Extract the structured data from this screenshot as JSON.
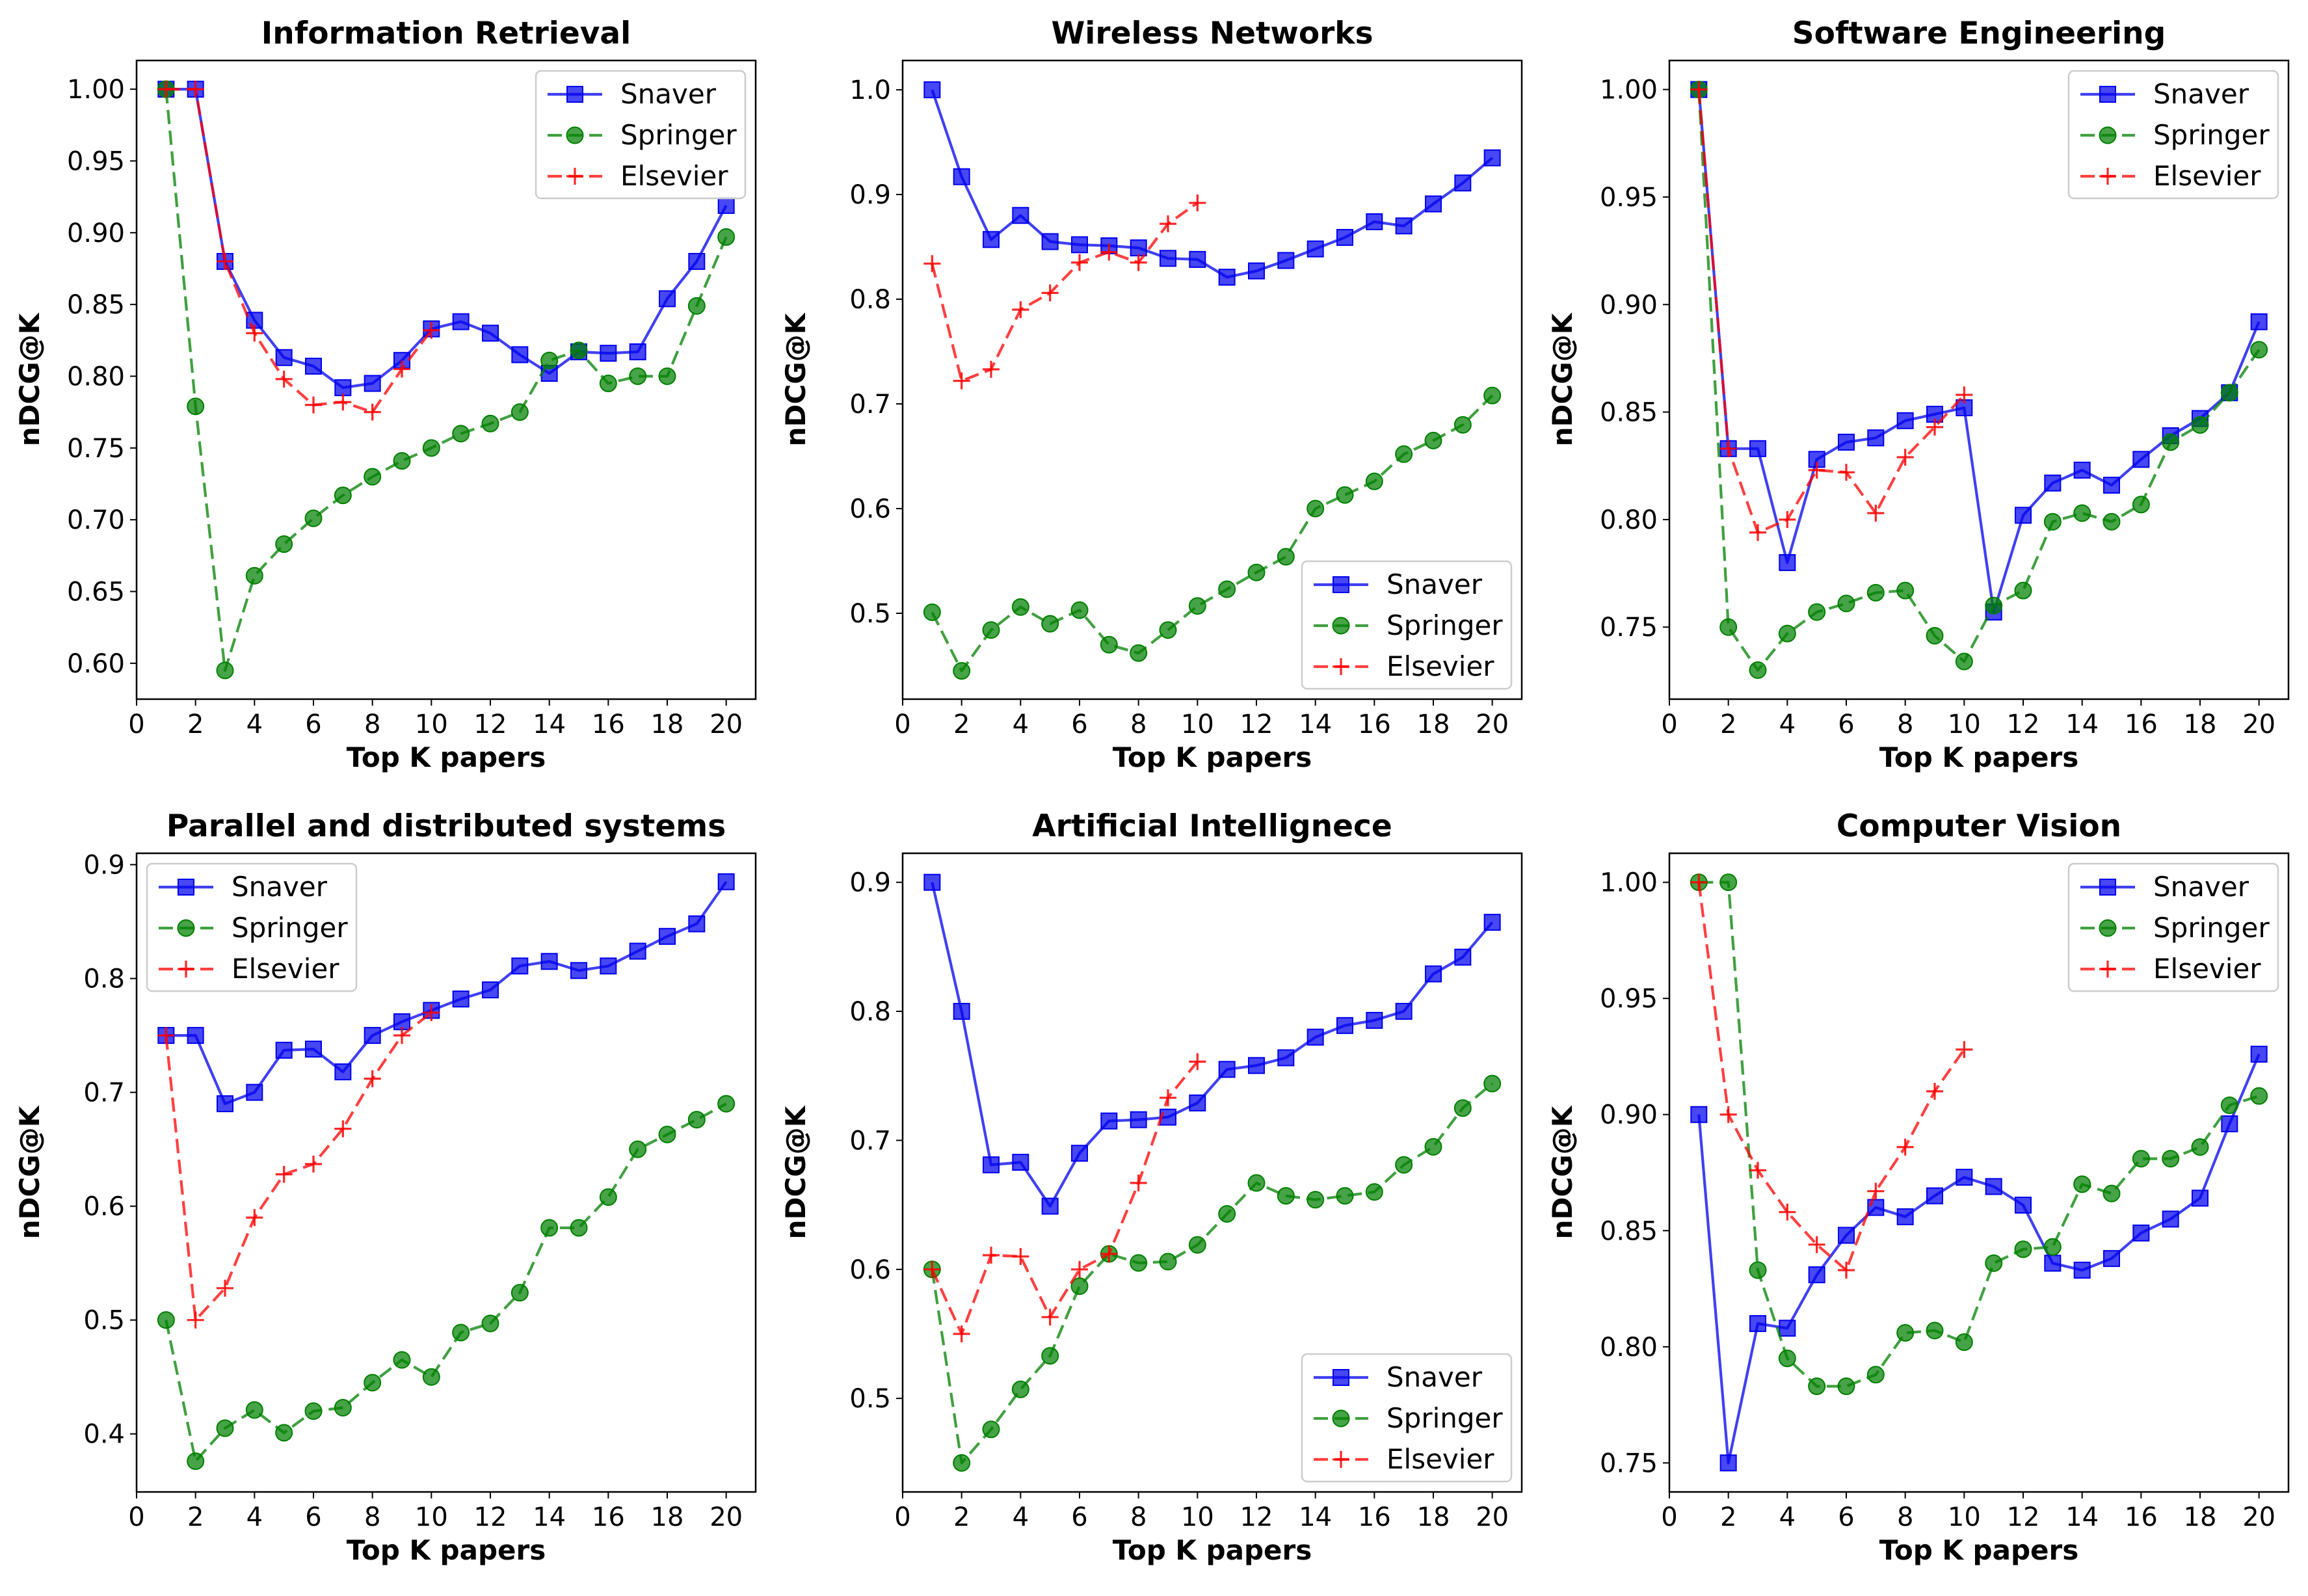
{
  "colors": {
    "Snaver": "#0000ee",
    "Springer": "#008000",
    "Elsevier": "#ff0000"
  },
  "chart_data": [
    {
      "type": "line",
      "title": "Information Retrieval",
      "xlabel": "Top K papers",
      "ylabel": "nDCG@K",
      "xlim": [
        0,
        21
      ],
      "ylim": [
        0.575,
        1.02
      ],
      "xticks": [
        0,
        2,
        4,
        6,
        8,
        10,
        12,
        14,
        16,
        18,
        20
      ],
      "yticks": [
        "0.60",
        "0.65",
        "0.70",
        "0.75",
        "0.80",
        "0.85",
        "0.90",
        "0.95",
        "1.00"
      ],
      "legend": "top-right",
      "series": [
        {
          "name": "Snaver",
          "marker": "square",
          "style": "solid",
          "x": [
            1,
            2,
            3,
            4,
            5,
            6,
            7,
            8,
            9,
            10,
            11,
            12,
            13,
            14,
            15,
            16,
            17,
            18,
            19,
            20
          ],
          "y": [
            1.0,
            1.0,
            0.88,
            0.839,
            0.813,
            0.807,
            0.792,
            0.795,
            0.811,
            0.833,
            0.838,
            0.83,
            0.815,
            0.802,
            0.817,
            0.816,
            0.817,
            0.854,
            0.88,
            0.919
          ]
        },
        {
          "name": "Springer",
          "marker": "circle",
          "style": "dashed",
          "x": [
            1,
            2,
            3,
            4,
            5,
            6,
            7,
            8,
            9,
            10,
            11,
            12,
            13,
            14,
            15,
            16,
            17,
            18,
            19,
            20
          ],
          "y": [
            1.0,
            0.779,
            0.595,
            0.661,
            0.683,
            0.701,
            0.717,
            0.73,
            0.741,
            0.75,
            0.76,
            0.767,
            0.775,
            0.811,
            0.818,
            0.795,
            0.8,
            0.8,
            0.849,
            0.897
          ]
        },
        {
          "name": "Elsevier",
          "marker": "plus",
          "style": "dashed",
          "x": [
            1,
            2,
            3,
            4,
            5,
            6,
            7,
            8,
            9,
            10
          ],
          "y": [
            1.0,
            1.0,
            0.88,
            0.83,
            0.798,
            0.78,
            0.782,
            0.775,
            0.805,
            0.832
          ]
        }
      ]
    },
    {
      "type": "line",
      "title": "Wireless Networks",
      "xlabel": "Top K papers",
      "ylabel": "nDCG@K",
      "xlim": [
        0,
        21
      ],
      "ylim": [
        0.418,
        1.028
      ],
      "xticks": [
        0,
        2,
        4,
        6,
        8,
        10,
        12,
        14,
        16,
        18,
        20
      ],
      "yticks": [
        "0.5",
        "0.6",
        "0.7",
        "0.8",
        "0.9",
        "1.0"
      ],
      "legend": "lower-right",
      "series": [
        {
          "name": "Snaver",
          "marker": "square",
          "style": "solid",
          "x": [
            1,
            2,
            3,
            4,
            5,
            6,
            7,
            8,
            9,
            10,
            11,
            12,
            13,
            14,
            15,
            16,
            17,
            18,
            19,
            20
          ],
          "y": [
            1.0,
            0.917,
            0.857,
            0.88,
            0.855,
            0.852,
            0.851,
            0.849,
            0.839,
            0.838,
            0.821,
            0.827,
            0.837,
            0.848,
            0.859,
            0.874,
            0.87,
            0.891,
            0.911,
            0.935
          ]
        },
        {
          "name": "Springer",
          "marker": "circle",
          "style": "dashed",
          "x": [
            1,
            2,
            3,
            4,
            5,
            6,
            7,
            8,
            9,
            10,
            11,
            12,
            13,
            14,
            15,
            16,
            17,
            18,
            19,
            20
          ],
          "y": [
            0.501,
            0.445,
            0.484,
            0.506,
            0.49,
            0.503,
            0.47,
            0.462,
            0.484,
            0.507,
            0.523,
            0.539,
            0.554,
            0.6,
            0.613,
            0.626,
            0.652,
            0.665,
            0.68,
            0.708
          ]
        },
        {
          "name": "Elsevier",
          "marker": "plus",
          "style": "dashed",
          "x": [
            1,
            2,
            3,
            4,
            5,
            6,
            7,
            8,
            9,
            10
          ],
          "y": [
            0.834,
            0.722,
            0.733,
            0.79,
            0.806,
            0.835,
            0.845,
            0.835,
            0.872,
            0.892
          ]
        }
      ]
    },
    {
      "type": "line",
      "title": "Software Engineering",
      "xlabel": "Top K papers",
      "ylabel": "nDCG@K",
      "xlim": [
        0,
        21
      ],
      "ylim": [
        0.7165,
        1.0135
      ],
      "xticks": [
        0,
        2,
        4,
        6,
        8,
        10,
        12,
        14,
        16,
        18,
        20
      ],
      "yticks": [
        "0.75",
        "0.80",
        "0.85",
        "0.90",
        "0.95",
        "1.00"
      ],
      "legend": "top-right",
      "series": [
        {
          "name": "Snaver",
          "marker": "square",
          "style": "solid",
          "x": [
            1,
            2,
            3,
            4,
            5,
            6,
            7,
            8,
            9,
            10,
            11,
            12,
            13,
            14,
            15,
            16,
            17,
            18,
            19,
            20
          ],
          "y": [
            1.0,
            0.833,
            0.833,
            0.78,
            0.828,
            0.836,
            0.838,
            0.846,
            0.849,
            0.852,
            0.757,
            0.802,
            0.817,
            0.823,
            0.816,
            0.828,
            0.839,
            0.847,
            0.859,
            0.892
          ]
        },
        {
          "name": "Springer",
          "marker": "circle",
          "style": "dashed",
          "x": [
            1,
            2,
            3,
            4,
            5,
            6,
            7,
            8,
            9,
            10,
            11,
            12,
            13,
            14,
            15,
            16,
            17,
            18,
            19,
            20
          ],
          "y": [
            1.0,
            0.75,
            0.73,
            0.747,
            0.757,
            0.761,
            0.766,
            0.767,
            0.746,
            0.734,
            0.76,
            0.767,
            0.799,
            0.803,
            0.799,
            0.807,
            0.836,
            0.844,
            0.859,
            0.879
          ]
        },
        {
          "name": "Elsevier",
          "marker": "plus",
          "style": "dashed",
          "x": [
            1,
            2,
            3,
            4,
            5,
            6,
            7,
            8,
            9,
            10
          ],
          "y": [
            1.0,
            0.833,
            0.794,
            0.8,
            0.823,
            0.822,
            0.803,
            0.829,
            0.843,
            0.858
          ]
        }
      ]
    },
    {
      "type": "line",
      "title": "Parallel and distributed systems",
      "xlabel": "Top K papers",
      "ylabel": "nDCG@K",
      "xlim": [
        0,
        21
      ],
      "ylim": [
        0.349,
        0.91
      ],
      "xticks": [
        0,
        2,
        4,
        6,
        8,
        10,
        12,
        14,
        16,
        18,
        20
      ],
      "yticks": [
        "0.4",
        "0.5",
        "0.6",
        "0.7",
        "0.8",
        "0.9"
      ],
      "legend": "top-left",
      "series": [
        {
          "name": "Snaver",
          "marker": "square",
          "style": "solid",
          "x": [
            1,
            2,
            3,
            4,
            5,
            6,
            7,
            8,
            9,
            10,
            11,
            12,
            13,
            14,
            15,
            16,
            17,
            18,
            19,
            20
          ],
          "y": [
            0.75,
            0.75,
            0.69,
            0.7,
            0.737,
            0.738,
            0.718,
            0.75,
            0.762,
            0.772,
            0.782,
            0.79,
            0.811,
            0.815,
            0.807,
            0.811,
            0.824,
            0.837,
            0.848,
            0.885
          ]
        },
        {
          "name": "Springer",
          "marker": "circle",
          "style": "dashed",
          "x": [
            1,
            2,
            3,
            4,
            5,
            6,
            7,
            8,
            9,
            10,
            11,
            12,
            13,
            14,
            15,
            16,
            17,
            18,
            19,
            20
          ],
          "y": [
            0.5,
            0.376,
            0.405,
            0.421,
            0.401,
            0.42,
            0.423,
            0.445,
            0.465,
            0.45,
            0.489,
            0.497,
            0.524,
            0.581,
            0.581,
            0.608,
            0.65,
            0.663,
            0.676,
            0.69
          ]
        },
        {
          "name": "Elsevier",
          "marker": "plus",
          "style": "dashed",
          "x": [
            1,
            2,
            3,
            4,
            5,
            6,
            7,
            8,
            9,
            10
          ],
          "y": [
            0.75,
            0.5,
            0.528,
            0.59,
            0.628,
            0.637,
            0.668,
            0.712,
            0.75,
            0.77
          ]
        }
      ]
    },
    {
      "type": "line",
      "title": "Artificial Intellignece",
      "xlabel": "Top K papers",
      "ylabel": "nDCG@K",
      "xlim": [
        0,
        21
      ],
      "ylim": [
        0.4275,
        0.9225
      ],
      "xticks": [
        0,
        2,
        4,
        6,
        8,
        10,
        12,
        14,
        16,
        18,
        20
      ],
      "yticks": [
        "0.5",
        "0.6",
        "0.7",
        "0.8",
        "0.9"
      ],
      "legend": "lower-right",
      "series": [
        {
          "name": "Snaver",
          "marker": "square",
          "style": "solid",
          "x": [
            1,
            2,
            3,
            4,
            5,
            6,
            7,
            8,
            9,
            10,
            11,
            12,
            13,
            14,
            15,
            16,
            17,
            18,
            19,
            20
          ],
          "y": [
            0.9,
            0.8,
            0.681,
            0.683,
            0.649,
            0.69,
            0.715,
            0.716,
            0.718,
            0.729,
            0.755,
            0.758,
            0.764,
            0.78,
            0.789,
            0.793,
            0.8,
            0.829,
            0.842,
            0.869
          ]
        },
        {
          "name": "Springer",
          "marker": "circle",
          "style": "dashed",
          "x": [
            1,
            2,
            3,
            4,
            5,
            6,
            7,
            8,
            9,
            10,
            11,
            12,
            13,
            14,
            15,
            16,
            17,
            18,
            19,
            20
          ],
          "y": [
            0.6,
            0.45,
            0.476,
            0.507,
            0.533,
            0.587,
            0.612,
            0.605,
            0.606,
            0.619,
            0.643,
            0.667,
            0.657,
            0.654,
            0.657,
            0.66,
            0.681,
            0.695,
            0.725,
            0.744
          ]
        },
        {
          "name": "Elsevier",
          "marker": "plus",
          "style": "dashed",
          "x": [
            1,
            2,
            3,
            4,
            5,
            6,
            7,
            8,
            9,
            10
          ],
          "y": [
            0.6,
            0.55,
            0.611,
            0.61,
            0.563,
            0.6,
            0.612,
            0.667,
            0.733,
            0.761
          ]
        }
      ]
    },
    {
      "type": "line",
      "title": "Computer Vision",
      "xlabel": "Top K papers",
      "ylabel": "nDCG@K",
      "xlim": [
        0,
        21
      ],
      "ylim": [
        0.7375,
        1.0125
      ],
      "xticks": [
        0,
        2,
        4,
        6,
        8,
        10,
        12,
        14,
        16,
        18,
        20
      ],
      "yticks": [
        "0.75",
        "0.80",
        "0.85",
        "0.90",
        "0.95",
        "1.00"
      ],
      "legend": "top-right",
      "series": [
        {
          "name": "Snaver",
          "marker": "square",
          "style": "solid",
          "x": [
            1,
            2,
            3,
            4,
            5,
            6,
            7,
            8,
            9,
            10,
            11,
            12,
            13,
            14,
            15,
            16,
            17,
            18,
            19,
            20
          ],
          "y": [
            0.9,
            0.75,
            0.81,
            0.808,
            0.831,
            0.848,
            0.86,
            0.856,
            0.865,
            0.873,
            0.869,
            0.861,
            0.836,
            0.833,
            0.838,
            0.849,
            0.855,
            0.864,
            0.896,
            0.926
          ]
        },
        {
          "name": "Springer",
          "marker": "circle",
          "style": "dashed",
          "x": [
            1,
            2,
            3,
            4,
            5,
            6,
            7,
            8,
            9,
            10,
            11,
            12,
            13,
            14,
            15,
            16,
            17,
            18,
            19,
            20
          ],
          "y": [
            1.0,
            1.0,
            0.833,
            0.795,
            0.783,
            0.783,
            0.788,
            0.806,
            0.807,
            0.802,
            0.836,
            0.842,
            0.843,
            0.87,
            0.866,
            0.881,
            0.881,
            0.886,
            0.904,
            0.908
          ]
        },
        {
          "name": "Elsevier",
          "marker": "plus",
          "style": "dashed",
          "x": [
            1,
            2,
            3,
            4,
            5,
            6,
            7,
            8,
            9,
            10
          ],
          "y": [
            1.0,
            0.9,
            0.876,
            0.858,
            0.844,
            0.833,
            0.867,
            0.886,
            0.91,
            0.928
          ]
        }
      ]
    }
  ]
}
